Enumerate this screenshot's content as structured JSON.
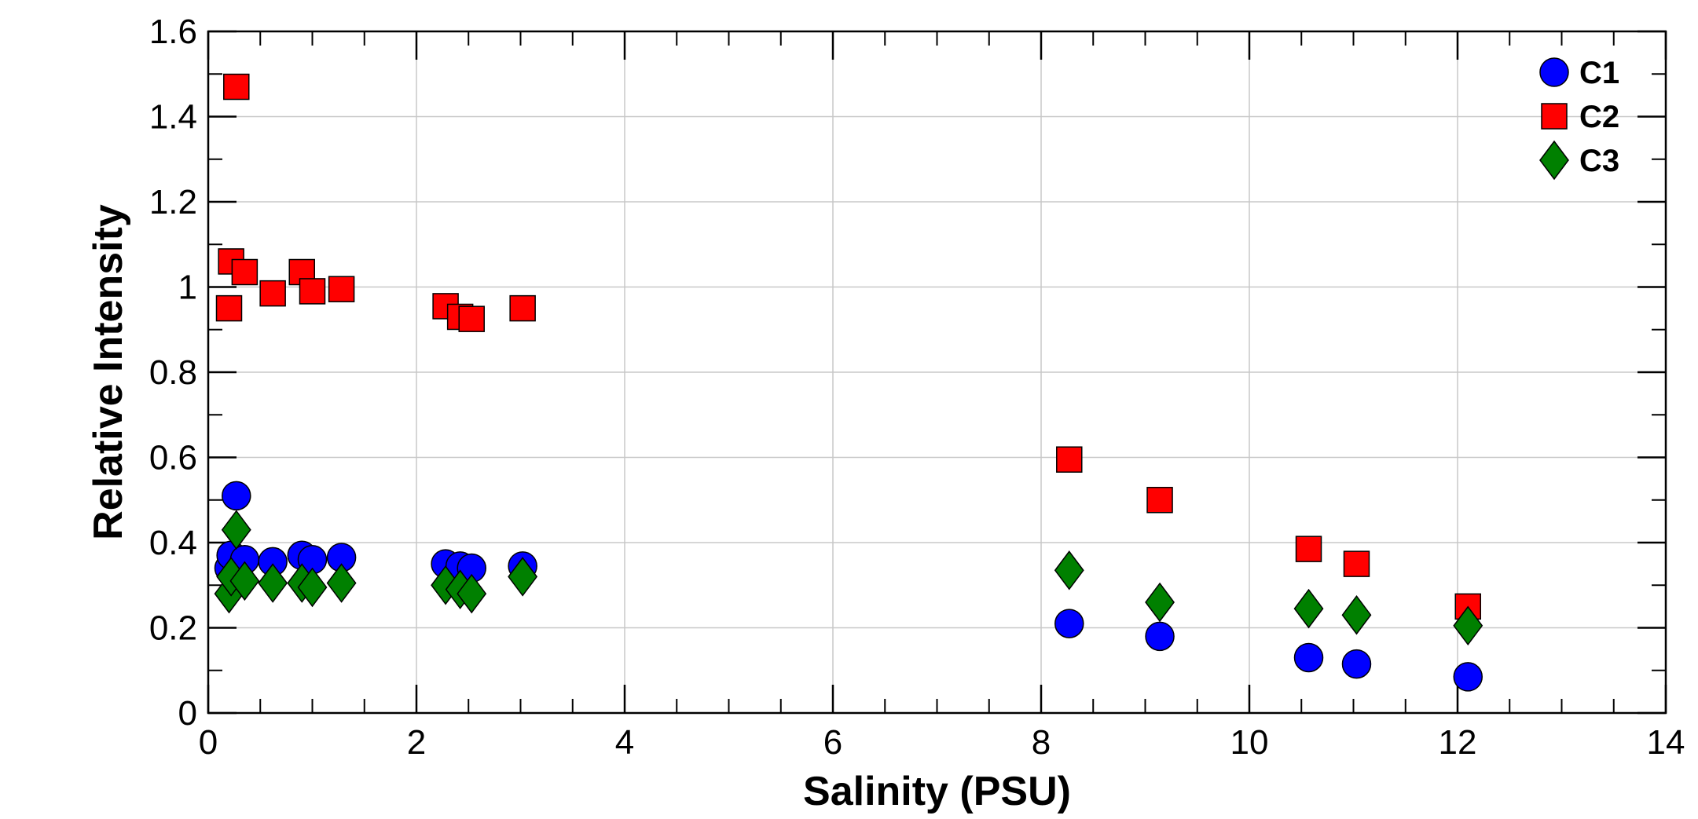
{
  "chart_data": {
    "type": "scatter",
    "title": "",
    "xlabel": "Salinity (PSU)",
    "ylabel": "Relative Intensity",
    "xlim": [
      0,
      14
    ],
    "ylim": [
      0,
      1.6
    ],
    "xticks": [
      "0",
      "2",
      "4",
      "6",
      "8",
      "10",
      "12",
      "14"
    ],
    "yticks": [
      "0",
      "0.2",
      "0.4",
      "0.6",
      "0.8",
      "1",
      "1.2",
      "1.4",
      "1.6"
    ],
    "grid": true,
    "legend_position": "top-right",
    "series": [
      {
        "name": "C1",
        "marker": "circle",
        "color": "#0000ff",
        "x": [
          0.2,
          0.22,
          0.27,
          0.35,
          0.62,
          0.9,
          1.0,
          1.28,
          2.28,
          2.42,
          2.53,
          3.02,
          8.27,
          9.14,
          10.57,
          11.03,
          12.1
        ],
        "y": [
          0.34,
          0.37,
          0.51,
          0.36,
          0.355,
          0.37,
          0.36,
          0.365,
          0.35,
          0.345,
          0.34,
          0.345,
          0.21,
          0.18,
          0.13,
          0.115,
          0.085
        ]
      },
      {
        "name": "C2",
        "marker": "square",
        "color": "#ff0000",
        "x": [
          0.2,
          0.22,
          0.27,
          0.35,
          0.62,
          0.9,
          1.0,
          1.28,
          2.28,
          2.42,
          2.53,
          3.02,
          8.27,
          9.14,
          10.57,
          11.03,
          12.1
        ],
        "y": [
          0.95,
          1.06,
          1.47,
          1.035,
          0.985,
          1.035,
          0.99,
          0.995,
          0.955,
          0.93,
          0.925,
          0.95,
          0.595,
          0.5,
          0.385,
          0.35,
          0.25
        ]
      },
      {
        "name": "C3",
        "marker": "diamond",
        "color": "#008000",
        "x": [
          0.2,
          0.22,
          0.27,
          0.35,
          0.62,
          0.9,
          1.0,
          1.28,
          2.28,
          2.42,
          2.53,
          3.02,
          8.27,
          9.14,
          10.57,
          11.03,
          12.1
        ],
        "y": [
          0.28,
          0.32,
          0.43,
          0.31,
          0.305,
          0.305,
          0.295,
          0.305,
          0.3,
          0.29,
          0.28,
          0.32,
          0.335,
          0.26,
          0.245,
          0.23,
          0.205
        ]
      }
    ]
  }
}
